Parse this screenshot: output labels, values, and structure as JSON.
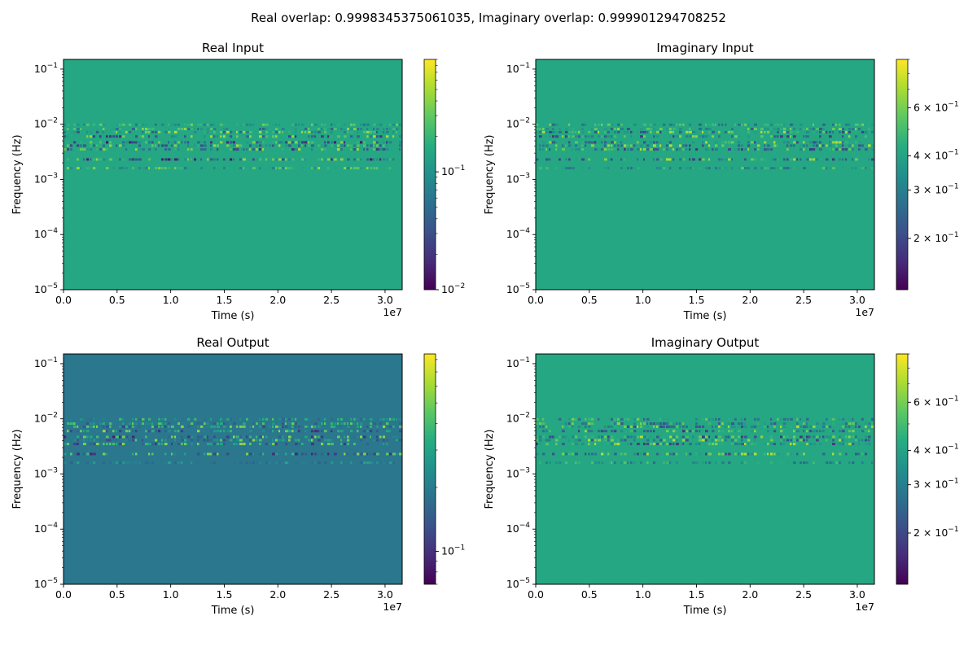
{
  "figure": {
    "suptitle": "Real overlap: 0.9998345375061035, Imaginary overlap: 0.999901294708252"
  },
  "chart_data": [
    {
      "type": "heatmap",
      "title": "Real Input",
      "xlabel": "Time (s)",
      "ylabel": "Frequency (Hz)",
      "x_offset_label": "1e7",
      "xlim": [
        0,
        31600000.0
      ],
      "ylim": [
        1e-05,
        0.15
      ],
      "y_scale": "log",
      "x_ticks": [
        "0.0",
        "0.5",
        "1.0",
        "1.5",
        "2.0",
        "2.5",
        "3.0"
      ],
      "y_ticks": [
        "-5",
        "-4",
        "-3",
        "-2",
        "-1"
      ],
      "background_value": 0.6,
      "bands": [
        {
          "freq": 0.0098,
          "values": [
            0.35,
            0.8
          ]
        },
        {
          "freq": 0.0082,
          "values": [
            0.3,
            0.85
          ]
        },
        {
          "freq": 0.0072,
          "values": [
            0.25,
            0.9
          ]
        },
        {
          "freq": 0.006,
          "values": [
            0.12,
            0.9
          ]
        },
        {
          "freq": 0.0047,
          "values": [
            0.06,
            0.85
          ]
        },
        {
          "freq": 0.0041,
          "values": [
            0.2,
            0.9
          ]
        },
        {
          "freq": 0.0035,
          "values": [
            0.12,
            0.9
          ]
        },
        {
          "freq": 0.0023,
          "values": [
            0.06,
            0.9
          ]
        },
        {
          "freq": 0.0016,
          "values": [
            0.4,
            0.85
          ]
        }
      ],
      "colorbar": {
        "scale": "log",
        "range": [
          0.01,
          0.9
        ],
        "major_ticks": [
          {
            "value": 0.01,
            "label": "10",
            "exp": "−2"
          },
          {
            "value": 0.1,
            "label": "10",
            "exp": "−1"
          }
        ]
      }
    },
    {
      "type": "heatmap",
      "title": "Imaginary Input",
      "xlabel": "Time (s)",
      "ylabel": "Frequency (Hz)",
      "x_offset_label": "1e7",
      "xlim": [
        0,
        31600000.0
      ],
      "ylim": [
        1e-05,
        0.15
      ],
      "y_scale": "log",
      "x_ticks": [
        "0.0",
        "0.5",
        "1.0",
        "1.5",
        "2.0",
        "2.5",
        "3.0"
      ],
      "y_ticks": [
        "-5",
        "-4",
        "-3",
        "-2",
        "-1"
      ],
      "background_value": 0.6,
      "bands": [
        {
          "freq": 0.0098,
          "values": [
            0.3,
            0.8
          ]
        },
        {
          "freq": 0.0082,
          "values": [
            0.25,
            0.85
          ]
        },
        {
          "freq": 0.0072,
          "values": [
            0.2,
            0.9
          ]
        },
        {
          "freq": 0.006,
          "values": [
            0.15,
            0.85
          ]
        },
        {
          "freq": 0.0047,
          "values": [
            0.15,
            0.9
          ]
        },
        {
          "freq": 0.0041,
          "values": [
            0.2,
            0.9
          ]
        },
        {
          "freq": 0.0035,
          "values": [
            0.15,
            0.9
          ]
        },
        {
          "freq": 0.0023,
          "values": [
            0.15,
            0.9
          ]
        },
        {
          "freq": 0.0016,
          "values": [
            0.35,
            0.75
          ]
        }
      ],
      "colorbar": {
        "scale": "log",
        "range": [
          0.13,
          0.9
        ],
        "major_ticks": [
          {
            "value": 0.2,
            "label": "2 × 10",
            "exp": "−1"
          },
          {
            "value": 0.3,
            "label": "3 × 10",
            "exp": "−1"
          },
          {
            "value": 0.4,
            "label": "4 × 10",
            "exp": "−1"
          },
          {
            "value": 0.6,
            "label": "6 × 10",
            "exp": "−1"
          }
        ]
      }
    },
    {
      "type": "heatmap",
      "title": "Real Output",
      "xlabel": "Time (s)",
      "ylabel": "Frequency (Hz)",
      "x_offset_label": "1e7",
      "xlim": [
        0,
        31600000.0
      ],
      "ylim": [
        1e-05,
        0.15
      ],
      "y_scale": "log",
      "x_ticks": [
        "0.0",
        "0.5",
        "1.0",
        "1.5",
        "2.0",
        "2.5",
        "3.0"
      ],
      "y_ticks": [
        "-5",
        "-4",
        "-3",
        "-2",
        "-1"
      ],
      "background_value": 0.4,
      "bands": [
        {
          "freq": 0.0098,
          "values": [
            0.3,
            0.75
          ]
        },
        {
          "freq": 0.0082,
          "values": [
            0.25,
            0.8
          ]
        },
        {
          "freq": 0.0072,
          "values": [
            0.2,
            0.85
          ]
        },
        {
          "freq": 0.006,
          "values": [
            0.12,
            0.85
          ]
        },
        {
          "freq": 0.0047,
          "values": [
            0.08,
            0.85
          ]
        },
        {
          "freq": 0.0041,
          "values": [
            0.2,
            0.85
          ]
        },
        {
          "freq": 0.0035,
          "values": [
            0.1,
            0.85
          ]
        },
        {
          "freq": 0.0023,
          "values": [
            0.1,
            0.85
          ]
        },
        {
          "freq": 0.0016,
          "values": [
            0.3,
            0.6
          ]
        }
      ],
      "colorbar": {
        "scale": "log",
        "range": [
          0.07,
          0.85
        ],
        "major_ticks": [
          {
            "value": 0.1,
            "label": "10",
            "exp": "−1"
          }
        ]
      }
    },
    {
      "type": "heatmap",
      "title": "Imaginary Output",
      "xlabel": "Time (s)",
      "ylabel": "Frequency (Hz)",
      "x_offset_label": "1e7",
      "xlim": [
        0,
        31600000.0
      ],
      "ylim": [
        1e-05,
        0.15
      ],
      "y_scale": "log",
      "x_ticks": [
        "0.0",
        "0.5",
        "1.0",
        "1.5",
        "2.0",
        "2.5",
        "3.0"
      ],
      "y_ticks": [
        "-5",
        "-4",
        "-3",
        "-2",
        "-1"
      ],
      "background_value": 0.6,
      "bands": [
        {
          "freq": 0.0098,
          "values": [
            0.3,
            0.8
          ]
        },
        {
          "freq": 0.0082,
          "values": [
            0.25,
            0.85
          ]
        },
        {
          "freq": 0.0072,
          "values": [
            0.2,
            0.9
          ]
        },
        {
          "freq": 0.006,
          "values": [
            0.15,
            0.85
          ]
        },
        {
          "freq": 0.0047,
          "values": [
            0.15,
            0.9
          ]
        },
        {
          "freq": 0.0041,
          "values": [
            0.2,
            0.9
          ]
        },
        {
          "freq": 0.0035,
          "values": [
            0.15,
            0.9
          ]
        },
        {
          "freq": 0.0023,
          "values": [
            0.15,
            0.9
          ]
        },
        {
          "freq": 0.0016,
          "values": [
            0.35,
            0.75
          ]
        }
      ],
      "colorbar": {
        "scale": "log",
        "range": [
          0.13,
          0.9
        ],
        "major_ticks": [
          {
            "value": 0.2,
            "label": "2 × 10",
            "exp": "−1"
          },
          {
            "value": 0.3,
            "label": "3 × 10",
            "exp": "−1"
          },
          {
            "value": 0.4,
            "label": "4 × 10",
            "exp": "−1"
          },
          {
            "value": 0.6,
            "label": "6 × 10",
            "exp": "−1"
          }
        ]
      }
    }
  ]
}
